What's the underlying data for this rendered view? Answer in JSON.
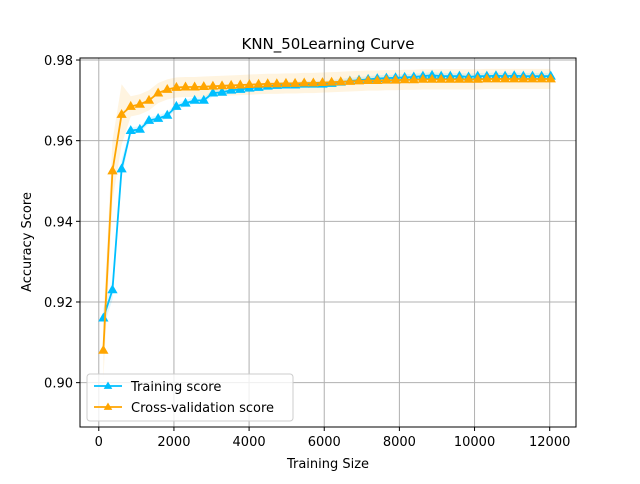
{
  "chart_data": {
    "type": "line",
    "title": "KNN_50Learning Curve",
    "xlabel": "Training Size",
    "ylabel": "Accuracy Score",
    "xlim": [
      -500,
      12700
    ],
    "ylim": [
      0.889,
      0.9805
    ],
    "xticks": [
      0,
      2000,
      4000,
      6000,
      8000,
      10000,
      12000
    ],
    "xtick_labels": [
      "0",
      "2000",
      "4000",
      "6000",
      "8000",
      "10000",
      "12000"
    ],
    "yticks": [
      0.9,
      0.92,
      0.94,
      0.96,
      0.98
    ],
    "ytick_labels": [
      "0.90",
      "0.92",
      "0.94",
      "0.96",
      "0.98"
    ],
    "grid": true,
    "legend_position": "lower-left",
    "x": [
      121,
      364,
      607,
      850,
      1093,
      1336,
      1579,
      1822,
      2065,
      2308,
      2551,
      2794,
      3037,
      3280,
      3523,
      3766,
      4009,
      4252,
      4495,
      4738,
      4981,
      5224,
      5467,
      5710,
      5953,
      6196,
      6439,
      6682,
      6925,
      7168,
      7411,
      7654,
      7897,
      8140,
      8383,
      8626,
      8869,
      9112,
      9355,
      9598,
      9841,
      10084,
      10327,
      10570,
      10813,
      11056,
      11299,
      11542,
      11785,
      12028
    ],
    "series": [
      {
        "name": "Training score",
        "color": "#00bfff",
        "marker": "triangle",
        "values": [
          0.916,
          0.923,
          0.953,
          0.9625,
          0.9628,
          0.965,
          0.9655,
          0.9663,
          0.9685,
          0.9693,
          0.97,
          0.97,
          0.9718,
          0.972,
          0.9725,
          0.9727,
          0.973,
          0.9732,
          0.9735,
          0.9737,
          0.9738,
          0.9738,
          0.974,
          0.974,
          0.974,
          0.9742,
          0.9745,
          0.9748,
          0.975,
          0.9752,
          0.9754,
          0.9755,
          0.9756,
          0.9757,
          0.9758,
          0.976,
          0.9762,
          0.976,
          0.976,
          0.976,
          0.9758,
          0.976,
          0.976,
          0.9761,
          0.976,
          0.9761,
          0.976,
          0.976,
          0.976,
          0.976
        ],
        "band": 0.0008
      },
      {
        "name": "Cross-validation score",
        "color": "#ffa500",
        "marker": "triangle",
        "values": [
          0.908,
          0.9525,
          0.9665,
          0.9685,
          0.969,
          0.97,
          0.9718,
          0.9727,
          0.9732,
          0.9733,
          0.9733,
          0.9734,
          0.9735,
          0.9736,
          0.9737,
          0.9738,
          0.9739,
          0.974,
          0.9741,
          0.9741,
          0.9742,
          0.9742,
          0.9743,
          0.9743,
          0.9744,
          0.9745,
          0.9746,
          0.9747,
          0.9748,
          0.9749,
          0.9749,
          0.975,
          0.975,
          0.9751,
          0.9751,
          0.9752,
          0.9752,
          0.9752,
          0.9752,
          0.9752,
          0.9752,
          0.9752,
          0.9753,
          0.9753,
          0.9753,
          0.9753,
          0.9753,
          0.9753,
          0.9753,
          0.9753
        ],
        "band": 0.0025
      }
    ]
  }
}
